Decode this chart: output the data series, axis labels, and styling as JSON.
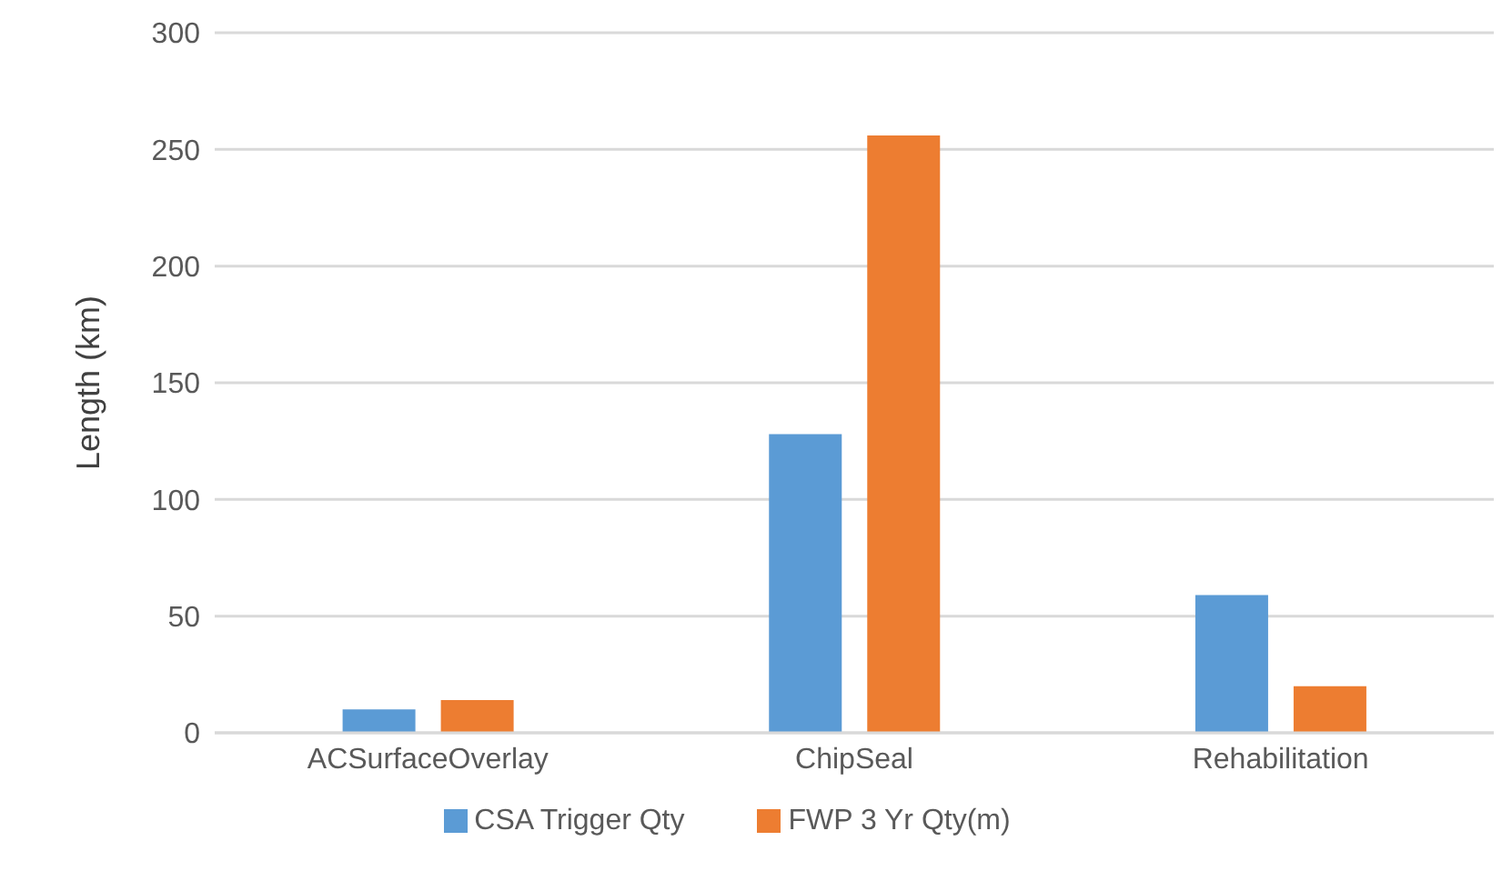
{
  "chart_data": {
    "type": "bar",
    "ylabel": "Length (km)",
    "categories": [
      "ACSurfaceOverlay",
      "ChipSeal",
      "Rehabilitation"
    ],
    "series": [
      {
        "name": "CSA Trigger Qty",
        "color": "#5b9bd5",
        "values": [
          10,
          128,
          59
        ]
      },
      {
        "name": "FWP 3 Yr Qty(m)",
        "color": "#ed7d31",
        "values": [
          14,
          256,
          20
        ]
      }
    ],
    "ylim": [
      0,
      300
    ],
    "yticks": [
      0,
      50,
      100,
      150,
      200,
      250,
      300
    ],
    "grid": "y",
    "legend": "bottom"
  }
}
